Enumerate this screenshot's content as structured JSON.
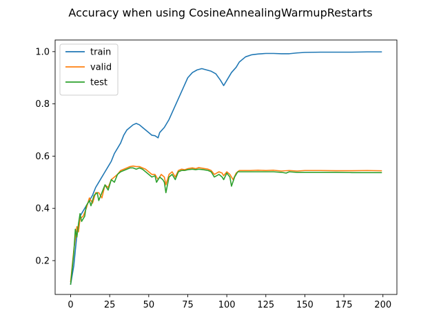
{
  "chart_data": {
    "type": "line",
    "title": "Accuracy when using CosineAnnealingWarmupRestarts",
    "xlabel": "",
    "ylabel": "",
    "xlim": [
      -9.95,
      208.95
    ],
    "ylim": [
      0.0705,
      1.0445
    ],
    "xticks": [
      0,
      25,
      50,
      75,
      100,
      125,
      150,
      175,
      200
    ],
    "yticks": [
      0.2,
      0.4,
      0.6,
      0.8,
      1.0
    ],
    "xtick_labels": [
      "0",
      "25",
      "50",
      "75",
      "100",
      "125",
      "150",
      "175",
      "200"
    ],
    "ytick_labels": [
      "0.2",
      "0.4",
      "0.6",
      "0.8",
      "1.0"
    ],
    "grid": false,
    "legend_position": "upper-left",
    "series": [
      {
        "name": "train",
        "color": "#1f77b4",
        "points": [
          [
            0,
            0.11
          ],
          [
            2,
            0.18
          ],
          [
            4,
            0.3
          ],
          [
            6,
            0.37
          ],
          [
            8,
            0.39
          ],
          [
            10,
            0.41
          ],
          [
            12,
            0.43
          ],
          [
            14,
            0.45
          ],
          [
            16,
            0.48
          ],
          [
            18,
            0.5
          ],
          [
            20,
            0.52
          ],
          [
            22,
            0.54
          ],
          [
            24,
            0.56
          ],
          [
            26,
            0.58
          ],
          [
            28,
            0.61
          ],
          [
            30,
            0.63
          ],
          [
            32,
            0.65
          ],
          [
            34,
            0.68
          ],
          [
            36,
            0.7
          ],
          [
            38,
            0.71
          ],
          [
            40,
            0.72
          ],
          [
            42,
            0.725
          ],
          [
            44,
            0.72
          ],
          [
            46,
            0.71
          ],
          [
            48,
            0.7
          ],
          [
            50,
            0.69
          ],
          [
            52,
            0.68
          ],
          [
            54,
            0.678
          ],
          [
            56,
            0.67
          ],
          [
            57,
            0.69
          ],
          [
            60,
            0.71
          ],
          [
            63,
            0.74
          ],
          [
            66,
            0.78
          ],
          [
            69,
            0.82
          ],
          [
            72,
            0.86
          ],
          [
            75,
            0.9
          ],
          [
            78,
            0.92
          ],
          [
            81,
            0.93
          ],
          [
            84,
            0.935
          ],
          [
            87,
            0.93
          ],
          [
            90,
            0.925
          ],
          [
            93,
            0.915
          ],
          [
            96,
            0.89
          ],
          [
            98,
            0.87
          ],
          [
            100,
            0.89
          ],
          [
            103,
            0.92
          ],
          [
            106,
            0.94
          ],
          [
            108,
            0.96
          ],
          [
            112,
            0.98
          ],
          [
            116,
            0.988
          ],
          [
            120,
            0.991
          ],
          [
            125,
            0.993
          ],
          [
            130,
            0.993
          ],
          [
            135,
            0.992
          ],
          [
            140,
            0.992
          ],
          [
            145,
            0.995
          ],
          [
            150,
            0.997
          ],
          [
            160,
            0.998
          ],
          [
            170,
            0.998
          ],
          [
            180,
            0.998
          ],
          [
            190,
            0.999
          ],
          [
            199,
            0.999
          ]
        ]
      },
      {
        "name": "valid",
        "color": "#ff7f0e",
        "points": [
          [
            0,
            0.12
          ],
          [
            2,
            0.24
          ],
          [
            4,
            0.33
          ],
          [
            5,
            0.31
          ],
          [
            6,
            0.36
          ],
          [
            8,
            0.37
          ],
          [
            10,
            0.4
          ],
          [
            12,
            0.44
          ],
          [
            14,
            0.42
          ],
          [
            16,
            0.46
          ],
          [
            18,
            0.46
          ],
          [
            20,
            0.44
          ],
          [
            22,
            0.49
          ],
          [
            24,
            0.48
          ],
          [
            26,
            0.51
          ],
          [
            28,
            0.52
          ],
          [
            30,
            0.53
          ],
          [
            32,
            0.545
          ],
          [
            34,
            0.55
          ],
          [
            36,
            0.555
          ],
          [
            38,
            0.56
          ],
          [
            40,
            0.562
          ],
          [
            42,
            0.56
          ],
          [
            44,
            0.56
          ],
          [
            46,
            0.555
          ],
          [
            48,
            0.55
          ],
          [
            50,
            0.54
          ],
          [
            52,
            0.53
          ],
          [
            54,
            0.53
          ],
          [
            56,
            0.51
          ],
          [
            58,
            0.53
          ],
          [
            60,
            0.52
          ],
          [
            61,
            0.49
          ],
          [
            63,
            0.53
          ],
          [
            65,
            0.54
          ],
          [
            67,
            0.52
          ],
          [
            69,
            0.545
          ],
          [
            71,
            0.55
          ],
          [
            73,
            0.548
          ],
          [
            75,
            0.552
          ],
          [
            78,
            0.555
          ],
          [
            80,
            0.552
          ],
          [
            82,
            0.556
          ],
          [
            85,
            0.553
          ],
          [
            88,
            0.55
          ],
          [
            90,
            0.545
          ],
          [
            92,
            0.53
          ],
          [
            95,
            0.54
          ],
          [
            97,
            0.535
          ],
          [
            98,
            0.525
          ],
          [
            100,
            0.54
          ],
          [
            102,
            0.53
          ],
          [
            104,
            0.51
          ],
          [
            106,
            0.535
          ],
          [
            108,
            0.545
          ],
          [
            110,
            0.545
          ],
          [
            115,
            0.545
          ],
          [
            120,
            0.546
          ],
          [
            125,
            0.545
          ],
          [
            130,
            0.546
          ],
          [
            135,
            0.543
          ],
          [
            140,
            0.545
          ],
          [
            145,
            0.543
          ],
          [
            150,
            0.545
          ],
          [
            160,
            0.545
          ],
          [
            170,
            0.544
          ],
          [
            180,
            0.544
          ],
          [
            190,
            0.545
          ],
          [
            199,
            0.544
          ]
        ]
      },
      {
        "name": "test",
        "color": "#2ca02c",
        "points": [
          [
            0,
            0.11
          ],
          [
            2,
            0.23
          ],
          [
            3,
            0.32
          ],
          [
            4,
            0.29
          ],
          [
            5,
            0.34
          ],
          [
            6,
            0.38
          ],
          [
            7,
            0.35
          ],
          [
            9,
            0.37
          ],
          [
            10,
            0.41
          ],
          [
            12,
            0.43
          ],
          [
            13,
            0.41
          ],
          [
            15,
            0.45
          ],
          [
            17,
            0.46
          ],
          [
            18,
            0.43
          ],
          [
            20,
            0.46
          ],
          [
            22,
            0.49
          ],
          [
            24,
            0.47
          ],
          [
            26,
            0.51
          ],
          [
            28,
            0.5
          ],
          [
            30,
            0.53
          ],
          [
            32,
            0.54
          ],
          [
            34,
            0.545
          ],
          [
            36,
            0.55
          ],
          [
            38,
            0.555
          ],
          [
            40,
            0.555
          ],
          [
            42,
            0.55
          ],
          [
            44,
            0.555
          ],
          [
            46,
            0.55
          ],
          [
            48,
            0.54
          ],
          [
            50,
            0.53
          ],
          [
            52,
            0.52
          ],
          [
            54,
            0.525
          ],
          [
            55,
            0.5
          ],
          [
            57,
            0.52
          ],
          [
            59,
            0.51
          ],
          [
            60,
            0.5
          ],
          [
            61,
            0.46
          ],
          [
            63,
            0.52
          ],
          [
            65,
            0.53
          ],
          [
            67,
            0.51
          ],
          [
            69,
            0.54
          ],
          [
            71,
            0.545
          ],
          [
            73,
            0.545
          ],
          [
            75,
            0.548
          ],
          [
            78,
            0.55
          ],
          [
            80,
            0.548
          ],
          [
            82,
            0.55
          ],
          [
            85,
            0.548
          ],
          [
            88,
            0.545
          ],
          [
            90,
            0.54
          ],
          [
            92,
            0.52
          ],
          [
            95,
            0.53
          ],
          [
            97,
            0.52
          ],
          [
            98,
            0.51
          ],
          [
            100,
            0.535
          ],
          [
            102,
            0.52
          ],
          [
            103,
            0.485
          ],
          [
            105,
            0.52
          ],
          [
            107,
            0.54
          ],
          [
            110,
            0.54
          ],
          [
            115,
            0.54
          ],
          [
            120,
            0.54
          ],
          [
            125,
            0.54
          ],
          [
            130,
            0.54
          ],
          [
            135,
            0.538
          ],
          [
            138,
            0.535
          ],
          [
            140,
            0.54
          ],
          [
            145,
            0.538
          ],
          [
            150,
            0.538
          ],
          [
            160,
            0.538
          ],
          [
            170,
            0.538
          ],
          [
            180,
            0.537
          ],
          [
            190,
            0.537
          ],
          [
            199,
            0.537
          ]
        ]
      }
    ]
  }
}
